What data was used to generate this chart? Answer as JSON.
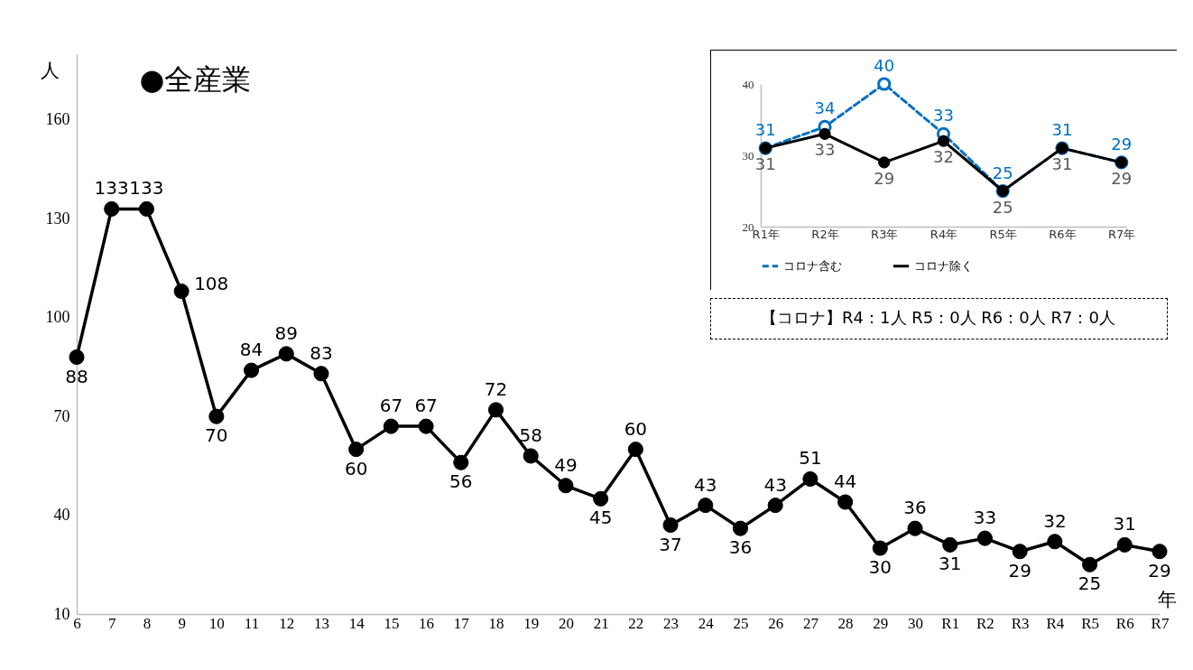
{
  "chart_data": [
    {
      "type": "line",
      "title": "●全産業",
      "ylabel": "人",
      "xlabel": "年",
      "categories": [
        "6",
        "7",
        "8",
        "9",
        "10",
        "11",
        "12",
        "13",
        "14",
        "15",
        "16",
        "17",
        "18",
        "19",
        "20",
        "21",
        "22",
        "23",
        "24",
        "25",
        "26",
        "27",
        "28",
        "29",
        "30",
        "R1",
        "R2",
        "R3",
        "R4",
        "R5",
        "R6",
        "R7"
      ],
      "series": [
        {
          "color": "#000000",
          "values": [
            88,
            133,
            133,
            108,
            70,
            84,
            89,
            83,
            60,
            67,
            67,
            56,
            72,
            58,
            49,
            45,
            60,
            37,
            43,
            36,
            43,
            51,
            44,
            30,
            36,
            31,
            33,
            29,
            32,
            25,
            31,
            29
          ]
        }
      ],
      "ylim": [
        10,
        180
      ],
      "yticks": [
        10,
        40,
        70,
        100,
        130,
        160
      ],
      "grid": false,
      "marker": "circle",
      "line_style": "solid",
      "data_labels": true
    },
    {
      "type": "line",
      "categories": [
        "R1年",
        "R2年",
        "R3年",
        "R4年",
        "R5年",
        "R6年",
        "R7年"
      ],
      "series": [
        {
          "name": "コロナ含む",
          "color": "#0070c0",
          "values": [
            31,
            34,
            40,
            33,
            25,
            31,
            29
          ],
          "line_style": "dashed"
        },
        {
          "name": "コロナ除く",
          "color": "#000000",
          "values": [
            31,
            33,
            29,
            32,
            25,
            31,
            29
          ],
          "line_style": "solid"
        }
      ],
      "ylim": [
        20,
        40
      ],
      "yticks": [
        20,
        30,
        40
      ],
      "grid": false,
      "marker": "circle",
      "legend": "bottom",
      "data_labels": true,
      "annotations": [
        "【コロナ】R4：1人 R5：0人 R6：0人 R7：0人"
      ]
    }
  ]
}
